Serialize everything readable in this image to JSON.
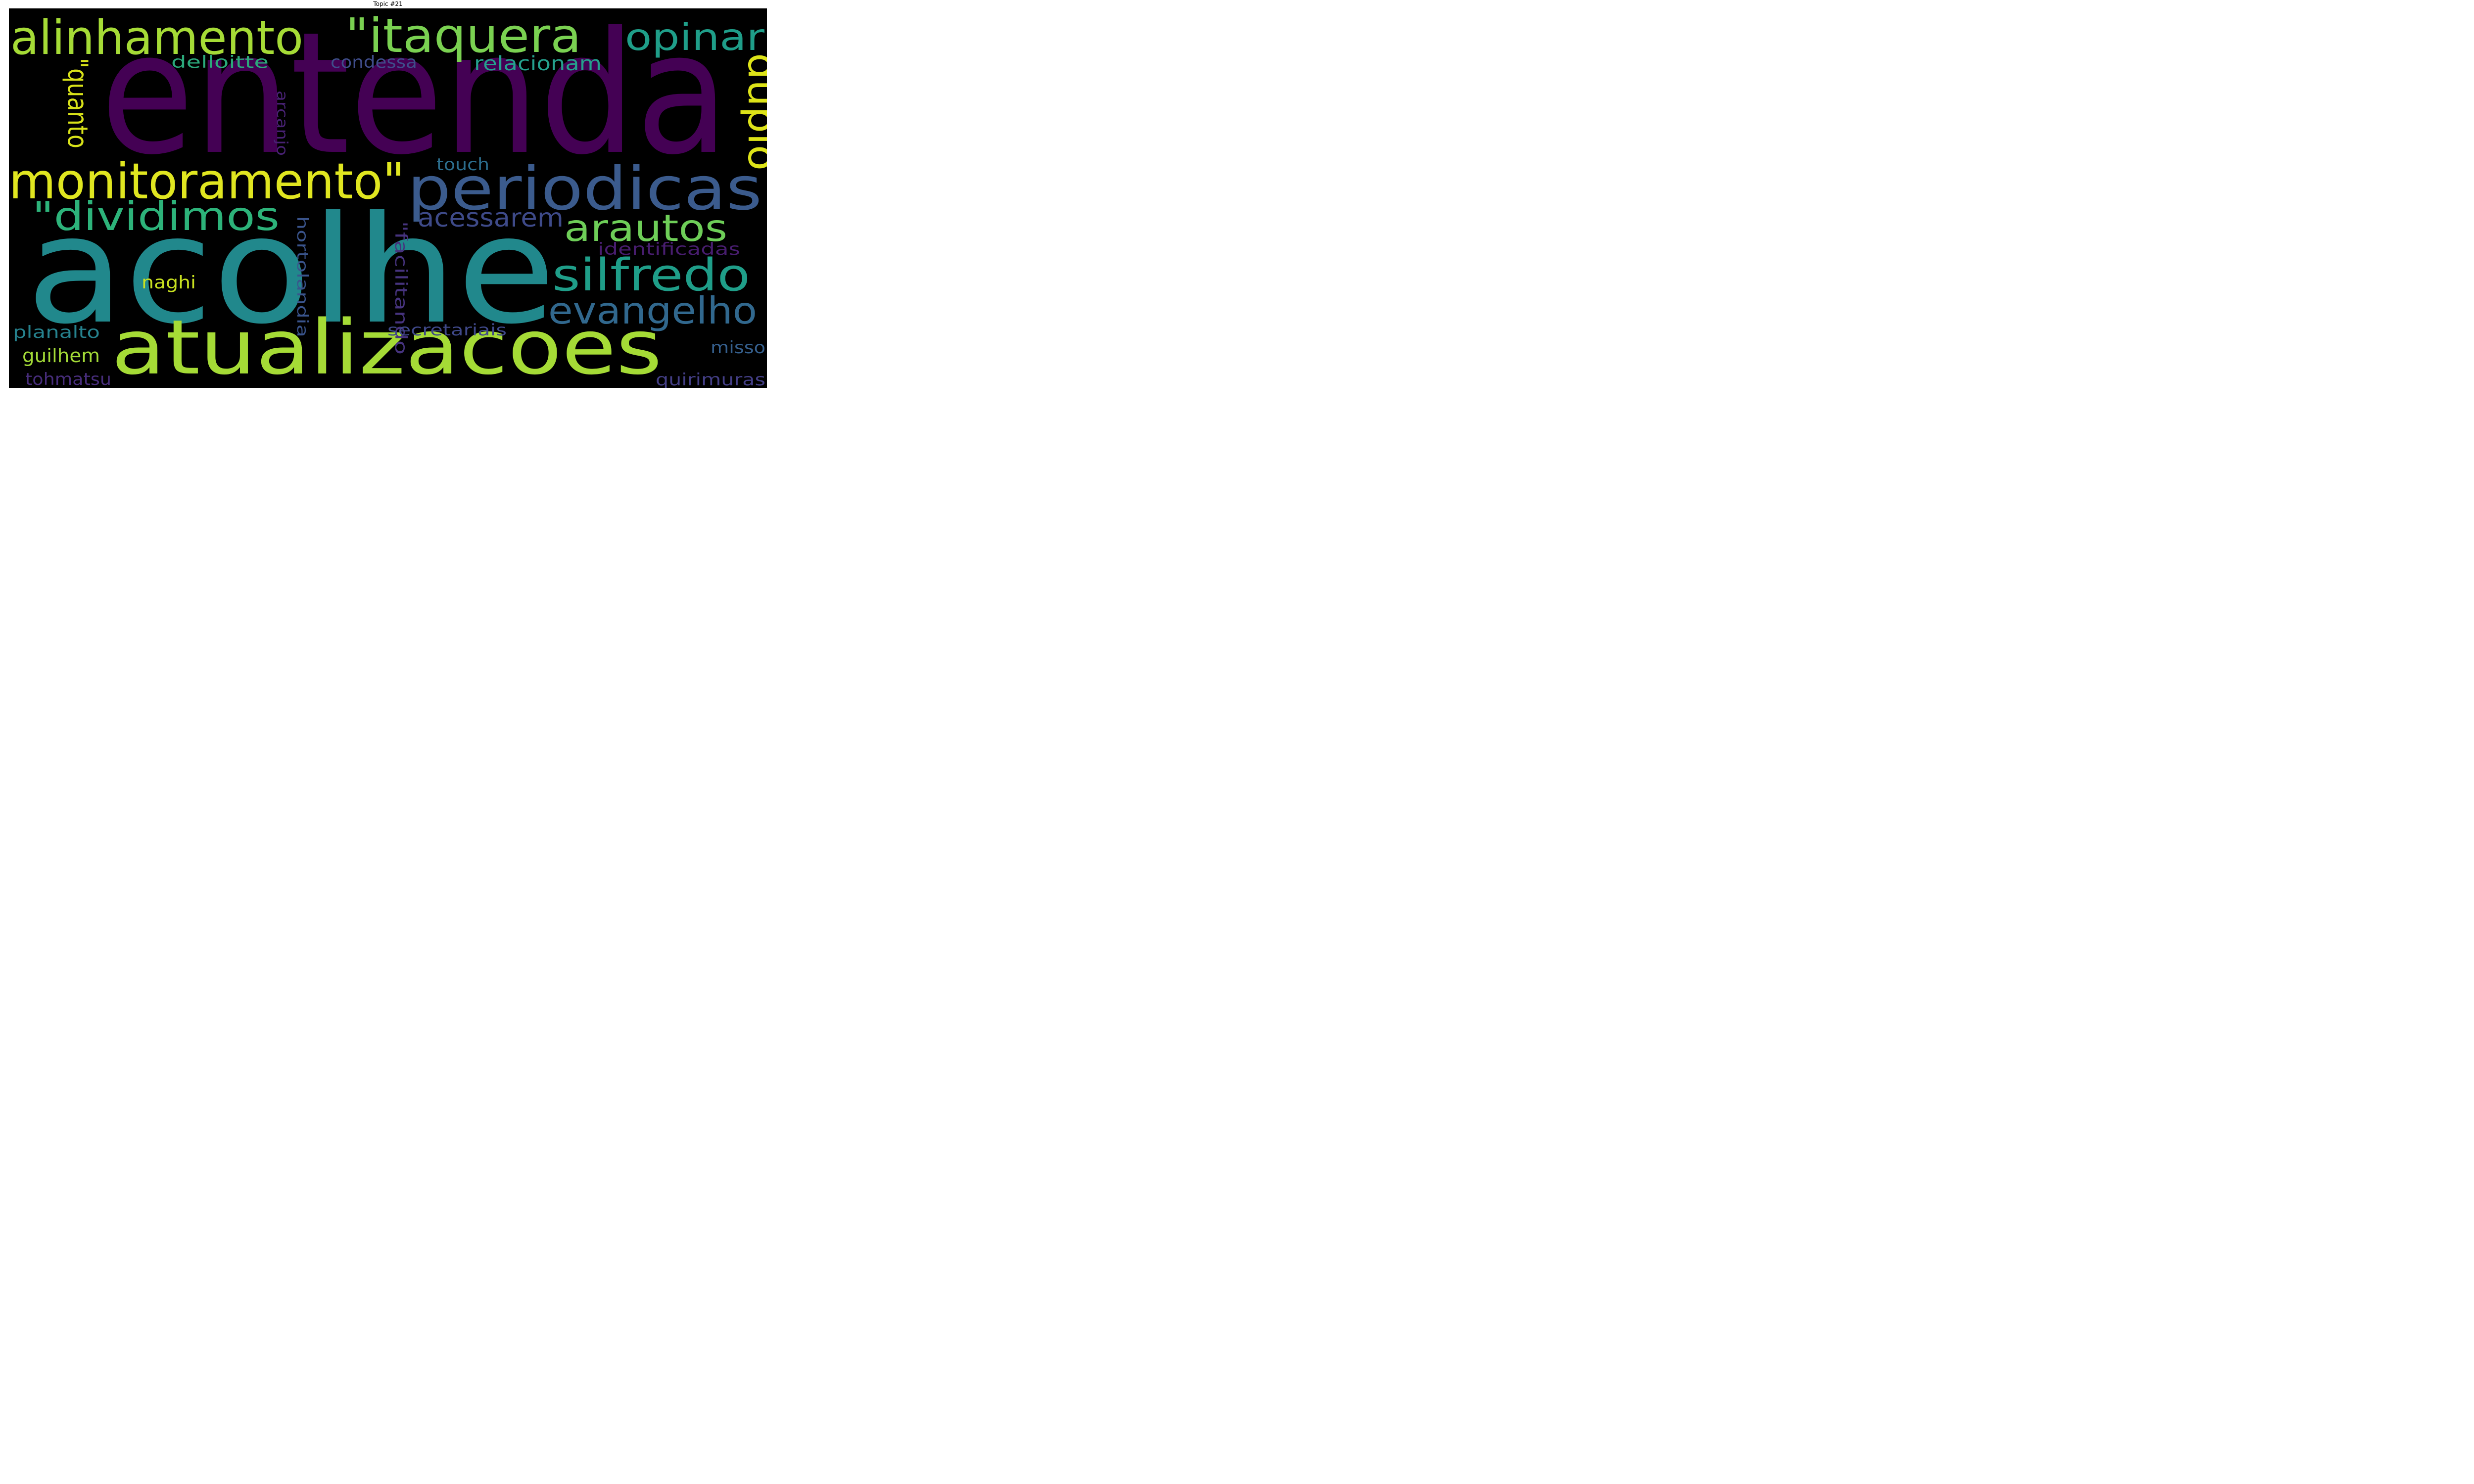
{
  "title": "Topic #21",
  "words": [
    {
      "text": "entenda",
      "color": "#440154"
    },
    {
      "text": "acolhe",
      "color": "#21888c"
    },
    {
      "text": "atualizacoes",
      "color": "#a5db36"
    },
    {
      "text": "periodicas",
      "color": "#3b5b8d"
    },
    {
      "text": "monitoramento\"",
      "color": "#e0e620"
    },
    {
      "text": "alinhamento",
      "color": "#a5db36"
    },
    {
      "text": "\"itaquera",
      "color": "#7ad151"
    },
    {
      "text": "opinar",
      "color": "#1f9e89"
    },
    {
      "text": "\"dividimos",
      "color": "#2db37a"
    },
    {
      "text": "arautos",
      "color": "#6ece58"
    },
    {
      "text": "silfredo",
      "color": "#1f9e89"
    },
    {
      "text": "evangelho",
      "color": "#31688e"
    },
    {
      "text": "duplo",
      "color": "#dde318"
    },
    {
      "text": "\"quanto",
      "color": "#d8e219"
    },
    {
      "text": "acessarem",
      "color": "#3e4a89"
    },
    {
      "text": "delloitte",
      "color": "#2ba97b"
    },
    {
      "text": "condessa",
      "color": "#3f4d8a"
    },
    {
      "text": "relacionam",
      "color": "#25a18e"
    },
    {
      "text": "arcanjo",
      "color": "#482173"
    },
    {
      "text": "touch",
      "color": "#2c6e8e"
    },
    {
      "text": "identificadas",
      "color": "#481d6f"
    },
    {
      "text": "naghi",
      "color": "#c8e020"
    },
    {
      "text": "hortolandia",
      "color": "#3a548c"
    },
    {
      "text": "\"facilitando",
      "color": "#46337e"
    },
    {
      "text": "planalto",
      "color": "#26828e"
    },
    {
      "text": "secretariais",
      "color": "#3f4889"
    },
    {
      "text": "guilhem",
      "color": "#a3da37"
    },
    {
      "text": "misso",
      "color": "#355f8d"
    },
    {
      "text": "tohmatsu",
      "color": "#472d7b"
    },
    {
      "text": "quirimuras",
      "color": "#433e85"
    }
  ]
}
